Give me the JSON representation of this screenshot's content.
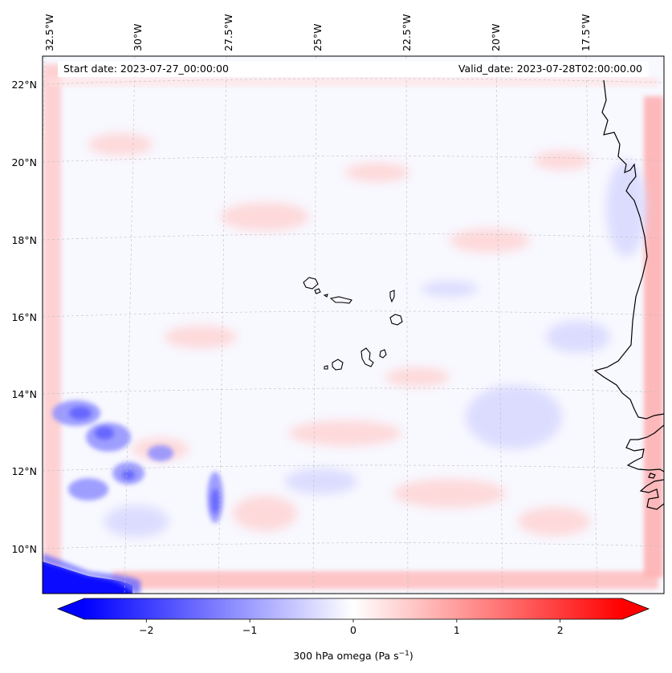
{
  "header": {
    "start_date": "Start date: 2023-07-27_00:00:00",
    "valid_date": "Valid_date: 2023-07-28T02:00:00.00"
  },
  "map": {
    "lon_labels": [
      "32.5°W",
      "30°W",
      "27.5°W",
      "25°W",
      "22.5°W",
      "20°W",
      "17.5°W"
    ],
    "lat_labels": [
      "22°N",
      "20°N",
      "18°N",
      "16°N",
      "14°N",
      "12°N",
      "10°N"
    ],
    "gridlines": "dashed"
  },
  "colorbar": {
    "label": "300 hPa omega (Pa s",
    "label_exp": "−1",
    "label_close": ")",
    "ticks": [
      "−2",
      "−1",
      "0",
      "1",
      "2"
    ],
    "range": [
      -2.6,
      2.6
    ],
    "colormap": "bwr",
    "extend": "both",
    "colors": {
      "negative": "#0000ff",
      "zero": "#ffffff",
      "positive": "#ff0000"
    }
  }
}
